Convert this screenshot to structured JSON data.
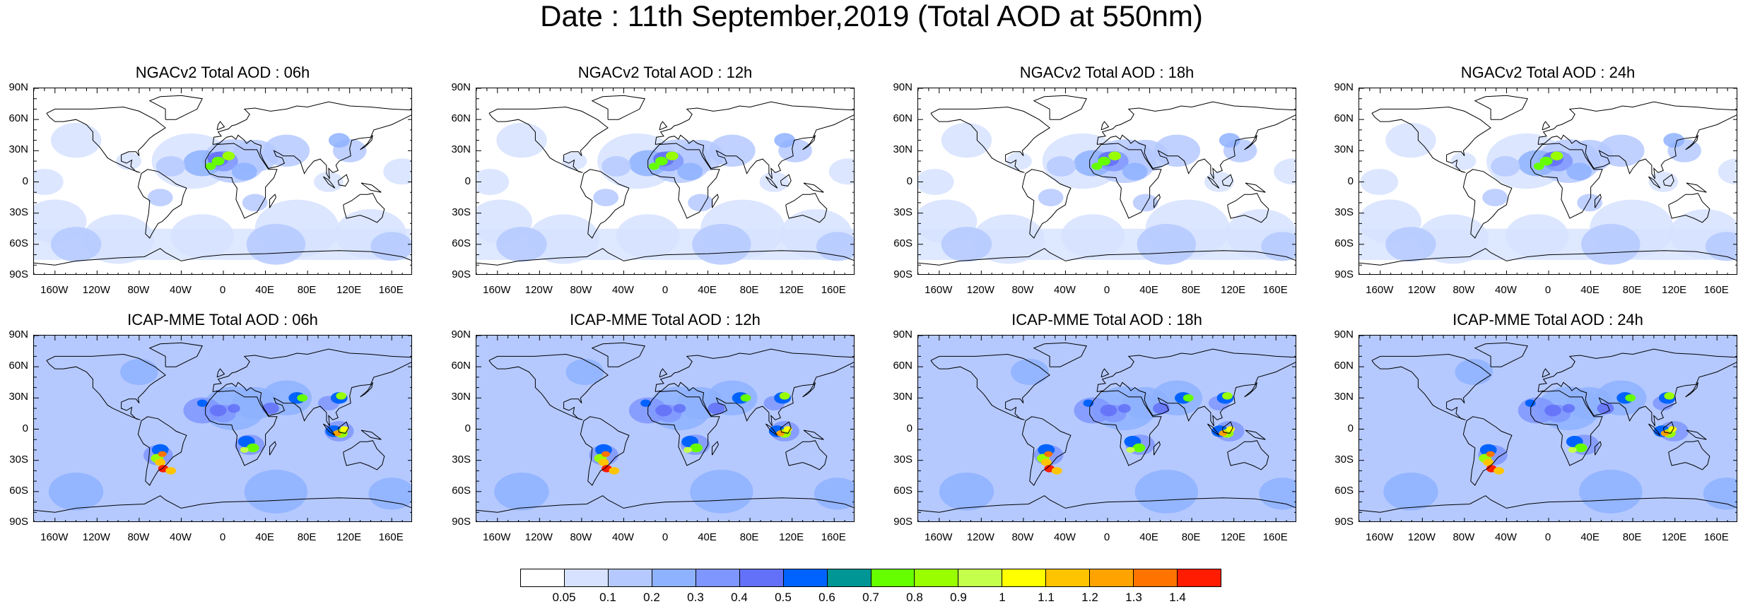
{
  "title": "Date : 11th September,2019 (Total AOD at 550nm)",
  "lat_ticks": [
    "90N",
    "60N",
    "30N",
    "0",
    "30S",
    "60S",
    "90S"
  ],
  "lon_ticks": [
    "160W",
    "120W",
    "80W",
    "40W",
    "0",
    "40E",
    "80E",
    "120E",
    "160E"
  ],
  "panels": [
    {
      "title": "NGACv2 Total AOD : 06h",
      "model": "NGACv2",
      "hour": "06h"
    },
    {
      "title": "NGACv2 Total AOD : 12h",
      "model": "NGACv2",
      "hour": "12h"
    },
    {
      "title": "NGACv2 Total AOD : 18h",
      "model": "NGACv2",
      "hour": "18h"
    },
    {
      "title": "NGACv2 Total AOD : 24h",
      "model": "NGACv2",
      "hour": "24h"
    },
    {
      "title": "ICAP-MME Total AOD : 06h",
      "model": "ICAP-MME",
      "hour": "06h"
    },
    {
      "title": "ICAP-MME Total AOD : 12h",
      "model": "ICAP-MME",
      "hour": "12h"
    },
    {
      "title": "ICAP-MME Total AOD : 18h",
      "model": "ICAP-MME",
      "hour": "18h"
    },
    {
      "title": "ICAP-MME Total AOD : 24h",
      "model": "ICAP-MME",
      "hour": "24h"
    }
  ],
  "colorbar": {
    "labels": [
      "0.05",
      "0.1",
      "0.2",
      "0.3",
      "0.4",
      "0.5",
      "0.6",
      "0.7",
      "0.8",
      "0.9",
      "1",
      "1.1",
      "1.2",
      "1.3",
      "1.4"
    ],
    "colors": [
      "#ffffff",
      "#d6e2ff",
      "#b5c9ff",
      "#8eb2ff",
      "#7f96ff",
      "#6370f8",
      "#0063ff",
      "#009696",
      "#66ff00",
      "#99ff00",
      "#c4ff4b",
      "#ffff00",
      "#ffc400",
      "#ffa300",
      "#ff7400",
      "#ff1c00"
    ]
  }
}
